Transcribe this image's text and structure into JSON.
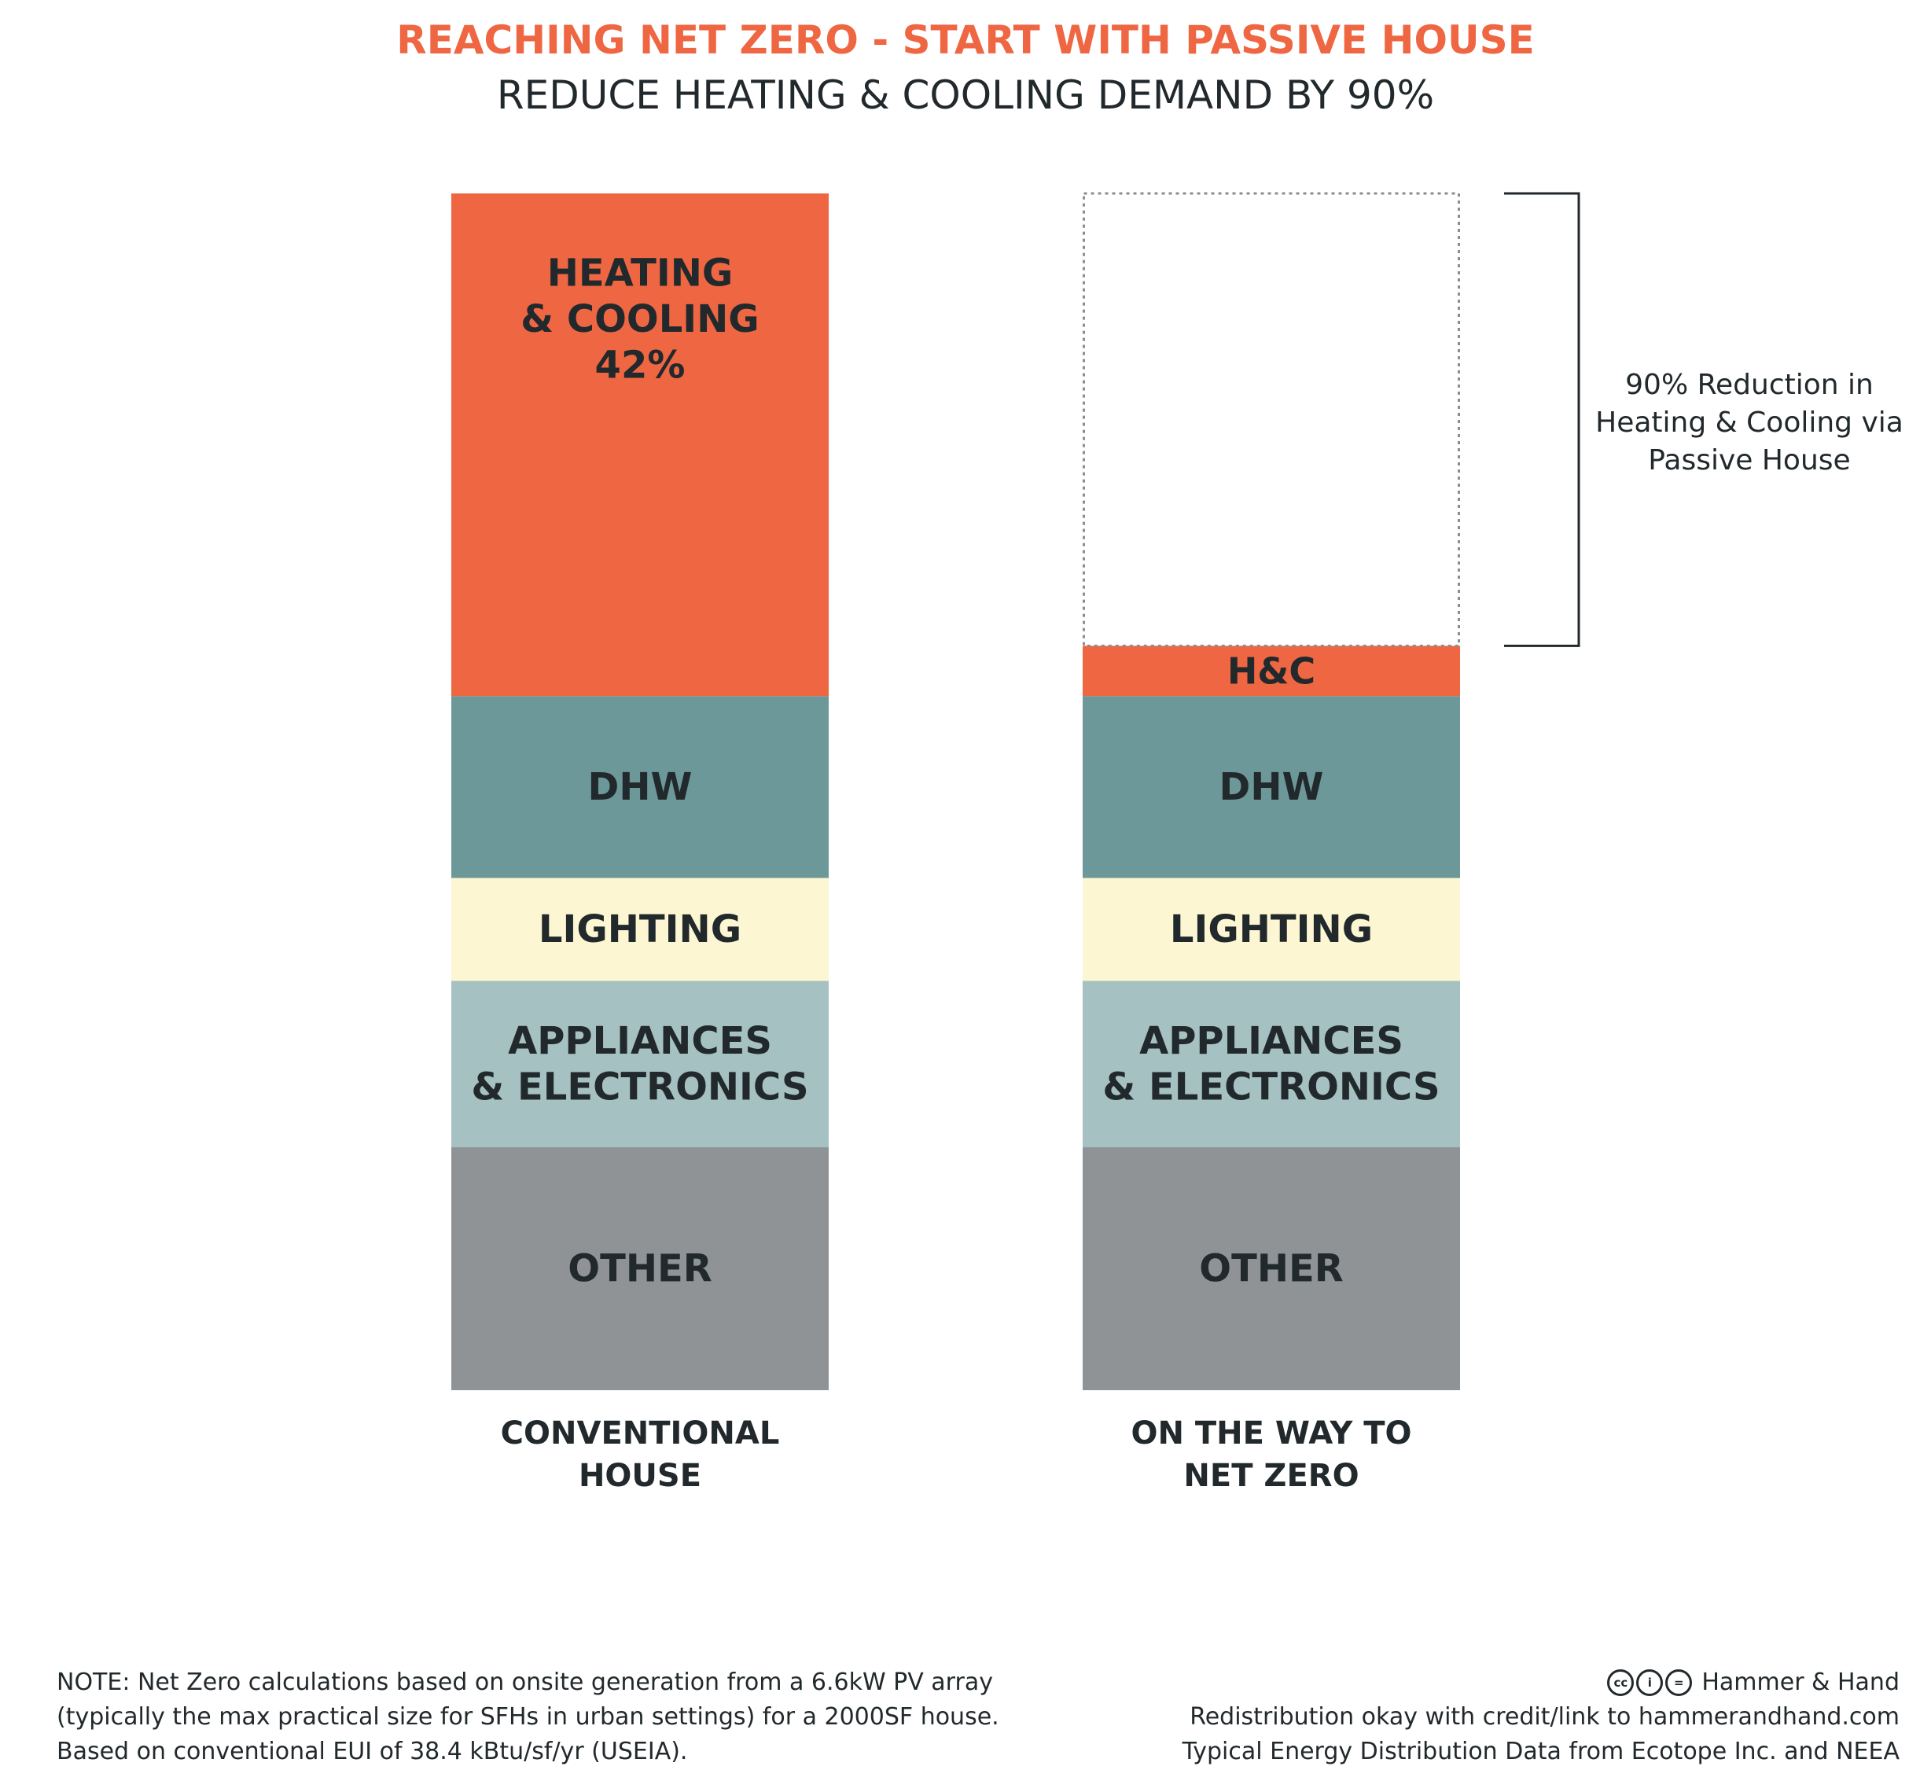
{
  "chart_data": {
    "type": "bar",
    "stacked": true,
    "title": "REACHING NET ZERO - START WITH PASSIVE HOUSE",
    "subtitle": "REDUCE HEATING & COOLING DEMAND BY 90%",
    "categories": [
      [
        "CONVENTIONAL",
        "HOUSE"
      ],
      [
        "ON THE WAY TO",
        "NET ZERO"
      ]
    ],
    "series": [
      {
        "key": "other",
        "labels": [
          "OTHER"
        ],
        "color": "#8f9395",
        "values": [
          20.3,
          20.3
        ]
      },
      {
        "key": "appliances",
        "labels": [
          "APPLIANCES",
          "& ELECTRONICS"
        ],
        "color": "#a6c1c1",
        "values": [
          13.9,
          13.9
        ]
      },
      {
        "key": "lighting",
        "labels": [
          "LIGHTING"
        ],
        "color": "#fcf6d2",
        "values": [
          8.6,
          8.6
        ]
      },
      {
        "key": "dhw",
        "labels": [
          "DHW"
        ],
        "color": "#6d989a",
        "values": [
          15.2,
          15.2
        ]
      },
      {
        "key": "hc",
        "labels_per_bar": [
          [
            "HEATING",
            "& COOLING",
            "42%"
          ],
          [
            "H&C"
          ]
        ],
        "color": "#ef6642",
        "values": [
          42.0,
          4.2
        ]
      }
    ],
    "removed_segment": {
      "bar": 1,
      "value": 37.8,
      "style": "dotted outline"
    },
    "annotation": [
      "90% Reduction in",
      "Heating & Cooling via",
      "Passive House"
    ],
    "ylim": [
      0,
      100
    ],
    "grid": false,
    "legend": "none"
  },
  "footer": {
    "note_lines": [
      "NOTE: Net Zero calculations based on onsite generation from a 6.6kW PV array",
      "(typically the max practical size for SFHs in urban settings) for a 2000SF house.",
      "Based on conventional EUI of 38.4 kBtu/sf/yr (USEIA)."
    ],
    "license_icons": [
      "cc",
      "i",
      "="
    ],
    "credit_lines": [
      "Hammer & Hand",
      "Redistribution okay with credit/link to hammerandhand.com",
      "Typical Energy Distribution Data from Ecotope Inc. and NEEA"
    ]
  }
}
